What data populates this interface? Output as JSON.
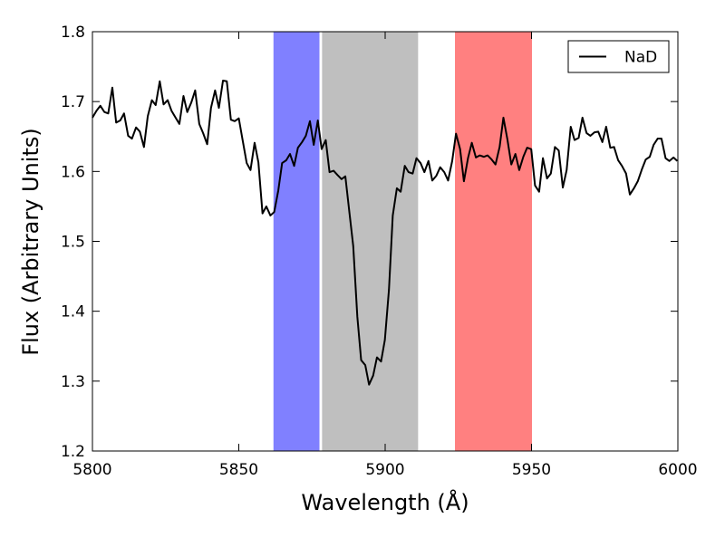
{
  "chart_data": {
    "type": "line",
    "xlabel": "Wavelength (Å)",
    "ylabel": "Flux (Arbitrary Units)",
    "xlim": [
      5800,
      6000
    ],
    "xticks": [
      5800,
      5850,
      5900,
      5950,
      6000
    ],
    "ylim": [
      1.2,
      1.8
    ],
    "yticks": [
      1.2,
      1.3,
      1.4,
      1.5,
      1.6,
      1.7,
      1.8
    ],
    "legend": "upper right",
    "spans": [
      {
        "xlim": [
          5862,
          5877.4
        ],
        "color": "#8080ff"
      },
      {
        "xlim": [
          5878.6,
          5911.1
        ],
        "color": "#bfbfbf"
      },
      {
        "xlim": [
          5924,
          5950
        ],
        "color": "#ff8080"
      }
    ],
    "x": [
      5800.0,
      5801.4,
      5802.7,
      5804.1,
      5805.4,
      5806.8,
      5808.1,
      5809.5,
      5810.8,
      5812.2,
      5813.5,
      5814.9,
      5816.2,
      5817.6,
      5818.9,
      5820.3,
      5821.6,
      5823.0,
      5824.3,
      5825.7,
      5827.0,
      5828.4,
      5829.7,
      5831.1,
      5832.4,
      5833.8,
      5835.1,
      5836.5,
      5837.8,
      5839.2,
      5840.5,
      5841.9,
      5843.2,
      5844.6,
      5845.9,
      5847.3,
      5848.6,
      5850.0,
      5851.3,
      5852.7,
      5854.0,
      5855.4,
      5856.7,
      5858.1,
      5859.4,
      5860.8,
      5862.1,
      5863.5,
      5864.8,
      5866.2,
      5867.5,
      5868.9,
      5870.2,
      5871.6,
      5872.9,
      5874.3,
      5875.6,
      5877.0,
      5878.3,
      5879.7,
      5881.0,
      5882.4,
      5883.7,
      5885.1,
      5886.4,
      5887.8,
      5889.1,
      5890.5,
      5891.8,
      5893.2,
      5894.5,
      5895.9,
      5897.2,
      5898.6,
      5899.9,
      5901.3,
      5902.6,
      5904.0,
      5905.3,
      5906.7,
      5908.0,
      5909.4,
      5910.7,
      5912.1,
      5913.4,
      5914.8,
      5916.1,
      5917.5,
      5918.8,
      5920.2,
      5921.5,
      5922.9,
      5924.2,
      5925.6,
      5926.9,
      5928.3,
      5929.6,
      5931.0,
      5932.3,
      5933.7,
      5935.0,
      5936.4,
      5937.7,
      5939.1,
      5940.4,
      5941.8,
      5943.1,
      5944.5,
      5945.8,
      5947.2,
      5948.5,
      5949.9,
      5951.2,
      5952.6,
      5953.9,
      5955.3,
      5956.6,
      5958.0,
      5959.3,
      5960.7,
      5962.0,
      5963.4,
      5964.7,
      5966.1,
      5967.4,
      5968.8,
      5970.1,
      5971.5,
      5972.8,
      5974.2,
      5975.5,
      5976.9,
      5978.2,
      5979.6,
      5980.9,
      5982.3,
      5983.6,
      5985.0,
      5986.3,
      5987.7,
      5989.0,
      5990.4,
      5991.7,
      5993.1,
      5994.4,
      5995.8,
      5997.1,
      5998.5,
      5999.8
    ],
    "series": [
      {
        "name": "NaD",
        "color": "#000000",
        "values": [
          1.677,
          1.687,
          1.694,
          1.685,
          1.683,
          1.72,
          1.67,
          1.673,
          1.683,
          1.651,
          1.647,
          1.663,
          1.657,
          1.635,
          1.679,
          1.702,
          1.695,
          1.729,
          1.696,
          1.702,
          1.687,
          1.677,
          1.668,
          1.708,
          1.685,
          1.699,
          1.716,
          1.668,
          1.655,
          1.639,
          1.691,
          1.716,
          1.691,
          1.73,
          1.729,
          1.674,
          1.672,
          1.676,
          1.645,
          1.612,
          1.602,
          1.641,
          1.613,
          1.54,
          1.55,
          1.537,
          1.542,
          1.573,
          1.612,
          1.616,
          1.625,
          1.608,
          1.634,
          1.642,
          1.651,
          1.672,
          1.638,
          1.673,
          1.632,
          1.645,
          1.599,
          1.601,
          1.595,
          1.589,
          1.593,
          1.541,
          1.493,
          1.392,
          1.33,
          1.323,
          1.295,
          1.308,
          1.334,
          1.328,
          1.359,
          1.431,
          1.537,
          1.576,
          1.571,
          1.608,
          1.599,
          1.597,
          1.619,
          1.612,
          1.599,
          1.615,
          1.587,
          1.594,
          1.606,
          1.599,
          1.587,
          1.615,
          1.654,
          1.632,
          1.586,
          1.619,
          1.641,
          1.62,
          1.623,
          1.621,
          1.623,
          1.617,
          1.61,
          1.635,
          1.677,
          1.645,
          1.61,
          1.625,
          1.602,
          1.621,
          1.634,
          1.632,
          1.58,
          1.571,
          1.619,
          1.59,
          1.597,
          1.635,
          1.63,
          1.577,
          1.602,
          1.664,
          1.645,
          1.648,
          1.677,
          1.655,
          1.651,
          1.656,
          1.657,
          1.642,
          1.664,
          1.634,
          1.635,
          1.616,
          1.608,
          1.597,
          1.567,
          1.576,
          1.586,
          1.603,
          1.617,
          1.621,
          1.638,
          1.647,
          1.647,
          1.619,
          1.615,
          1.62,
          1.615
        ]
      }
    ]
  }
}
